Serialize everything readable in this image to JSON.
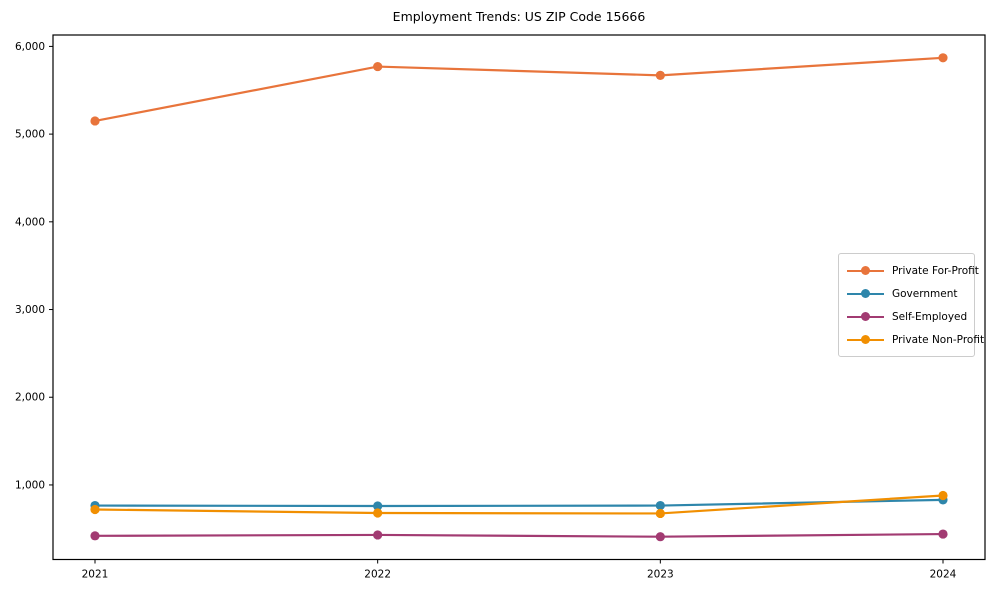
{
  "title": "Employment Trends: US ZIP Code 15666",
  "chart_data": {
    "type": "line",
    "title": "Employment Trends: US ZIP Code 15666",
    "categories": [
      "2021",
      "2022",
      "2023",
      "2024"
    ],
    "series": [
      {
        "name": "Private For-Profit",
        "color": "#E8743B",
        "values": [
          5150,
          5770,
          5670,
          5870
        ]
      },
      {
        "name": "Government",
        "color": "#2E86AB",
        "values": [
          765,
          760,
          765,
          830
        ]
      },
      {
        "name": "Self-Employed",
        "color": "#A23B72",
        "values": [
          420,
          430,
          410,
          440
        ]
      },
      {
        "name": "Private Non-Profit",
        "color": "#F18F01",
        "values": [
          720,
          680,
          675,
          880
        ]
      }
    ],
    "xlabel": "",
    "ylabel": "",
    "ylim": [
      150,
      6130
    ],
    "yticks": [
      1000,
      2000,
      3000,
      4000,
      5000,
      6000
    ],
    "ytick_labels": [
      "1,000",
      "2,000",
      "3,000",
      "4,000",
      "5,000",
      "6,000"
    ],
    "grid": false,
    "legend_position": "right-middle",
    "axis_color": "#000000",
    "background_color": "#ffffff"
  }
}
